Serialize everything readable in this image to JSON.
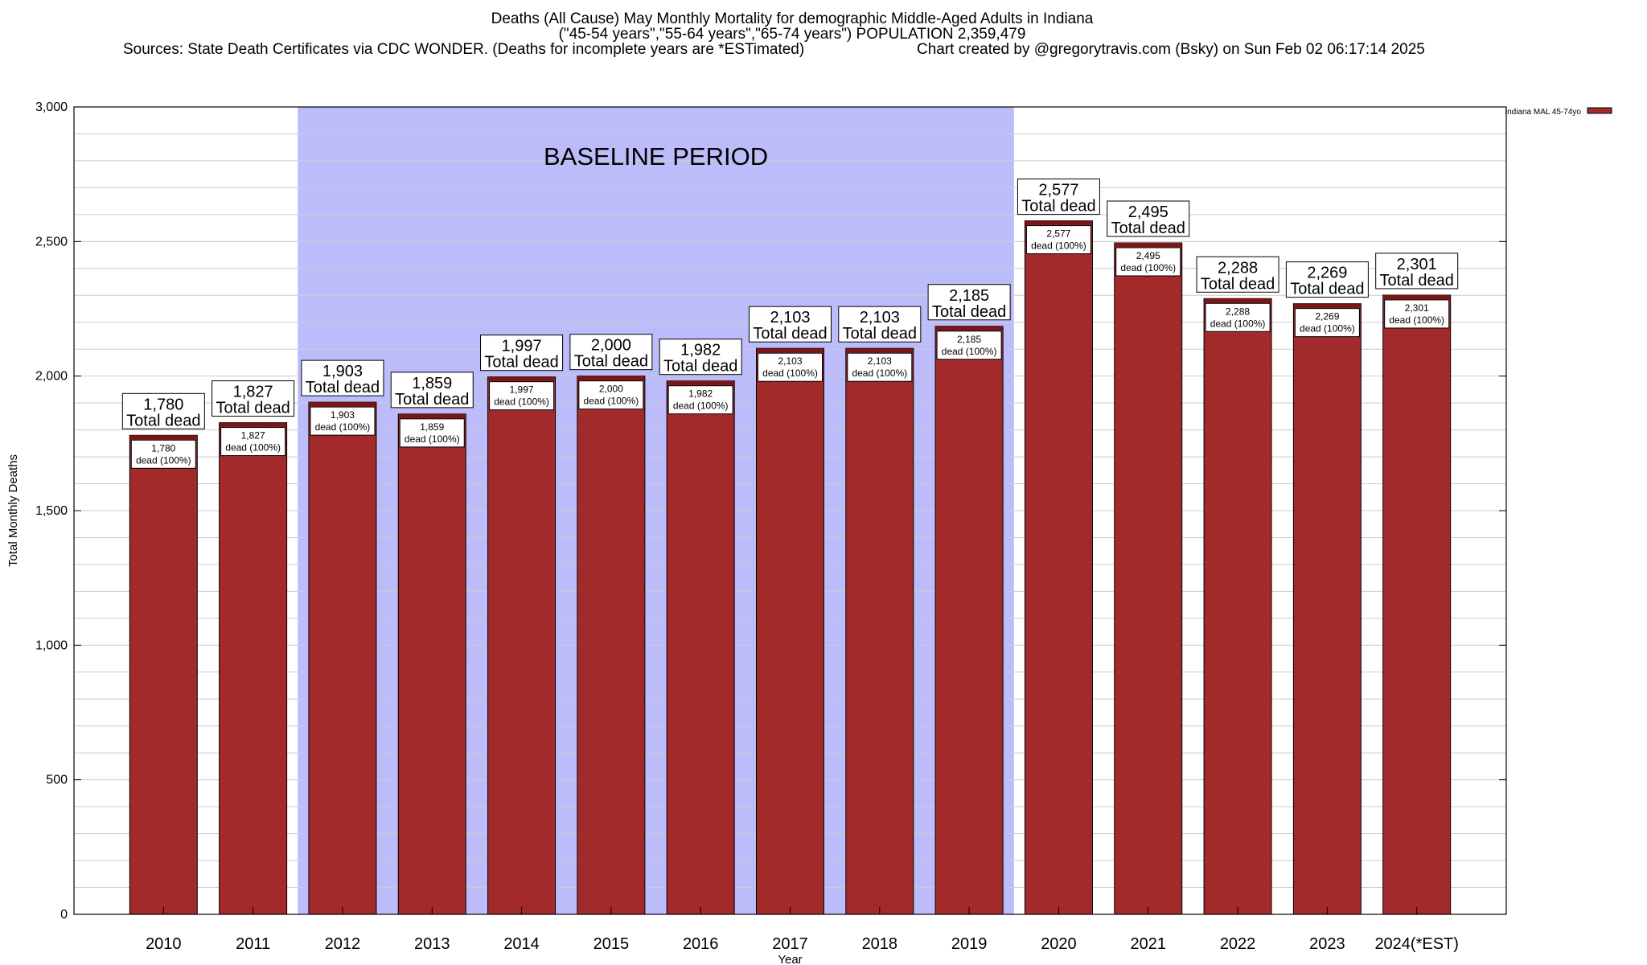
{
  "title": {
    "line1": "Deaths (All Cause) May Monthly Mortality for demographic Middle-Aged Adults in Indiana",
    "line2": "(\"45-54 years\",\"55-64 years\",\"65-74 years\") POPULATION 2,359,479",
    "line3_left": "Sources: State Death Certificates via CDC WONDER. (Deaths for incomplete years are *ESTimated)",
    "line3_right": "Chart created by @gregorytravis.com (Bsky) on Sun Feb 02 06:17:14 2025"
  },
  "chart_data": {
    "type": "bar",
    "categories": [
      "2010",
      "2011",
      "2012",
      "2013",
      "2014",
      "2015",
      "2016",
      "2017",
      "2018",
      "2019",
      "2020",
      "2021",
      "2022",
      "2023",
      "2024(*EST)"
    ],
    "series": [
      {
        "name": "Indiana MAL 45-74yo",
        "values": [
          1780,
          1827,
          1903,
          1859,
          1997,
          2000,
          1982,
          2103,
          2103,
          2185,
          2577,
          2495,
          2288,
          2269,
          2301
        ]
      }
    ],
    "value_labels": [
      "1,780",
      "1,827",
      "1,903",
      "1,859",
      "1,997",
      "2,000",
      "1,982",
      "2,103",
      "2,103",
      "2,185",
      "2,577",
      "2,495",
      "2,288",
      "2,269",
      "2,301"
    ],
    "label_top_suffix": "Total dead",
    "label_inner_suffix": "dead (100%)",
    "xlabel": "Year",
    "ylabel": "Total Monthly Deaths",
    "ylim": [
      0,
      3000
    ],
    "yticks": [
      0,
      500,
      1000,
      1500,
      2000,
      2500,
      3000
    ],
    "ytick_labels": [
      "0",
      "500",
      "1,000",
      "1,500",
      "2,000",
      "2,500",
      "3,000"
    ],
    "minor_grid_step": 100,
    "grid": true,
    "legend": "top-right",
    "baseline": {
      "label": "BASELINE PERIOD",
      "start_category": "2012",
      "end_category": "2019"
    },
    "colors": {
      "bar": "#a32a2b",
      "bar_cap": "#7a1618",
      "baseline_shade": "#bcbcfa",
      "grid": "#cccccc"
    }
  }
}
